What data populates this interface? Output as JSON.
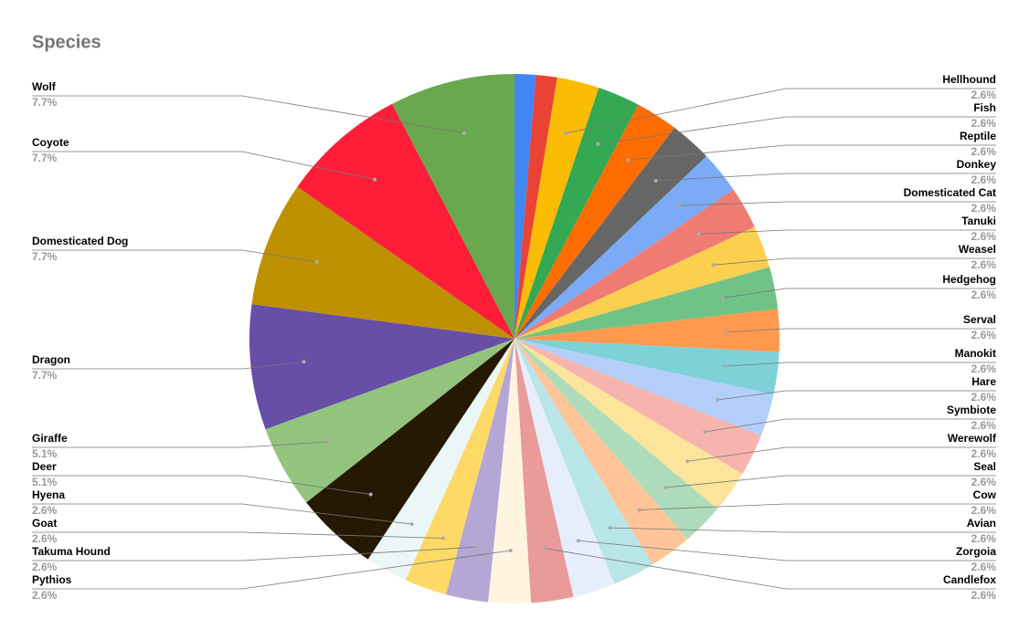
{
  "chart_data": {
    "type": "pie",
    "title": "Species",
    "categories": [
      null,
      null,
      "Hellhound",
      "Fish",
      "Reptile",
      "Donkey",
      "Domesticated Cat",
      "Tanuki",
      "Weasel",
      "Hedgehog",
      "Serval",
      "Manokit",
      "Hare",
      "Symbiote",
      "Werewolf",
      "Seal",
      "Cow",
      "Avian",
      "Zorgoia",
      "Candlefox",
      "Pythios",
      "Takuma Hound",
      "Goat",
      "Hyena",
      "Deer",
      "Giraffe",
      "Dragon",
      "Domesticated Dog",
      "Coyote",
      "Wolf"
    ],
    "values": [
      1.3,
      1.3,
      2.6,
      2.6,
      2.6,
      2.6,
      2.6,
      2.6,
      2.6,
      2.6,
      2.6,
      2.6,
      2.6,
      2.6,
      2.6,
      2.6,
      2.6,
      2.6,
      2.6,
      2.6,
      2.6,
      2.6,
      2.6,
      2.6,
      5.1,
      5.1,
      7.7,
      7.7,
      7.7,
      7.7
    ],
    "value_labels": [
      null,
      null,
      "2.6%",
      "2.6%",
      "2.6%",
      "2.6%",
      "2.6%",
      "2.6%",
      "2.6%",
      "2.6%",
      "2.6%",
      "2.6%",
      "2.6%",
      "2.6%",
      "2.6%",
      "2.6%",
      "2.6%",
      "2.6%",
      "2.6%",
      "2.6%",
      "2.6%",
      "2.6%",
      "2.6%",
      "2.6%",
      "5.1%",
      "5.1%",
      "7.7%",
      "7.7%",
      "7.7%",
      "7.7%"
    ],
    "colors": [
      "#4285f4",
      "#ea4335",
      "#fbbc04",
      "#34a853",
      "#ff6d01",
      "#666666",
      "#7baaf7",
      "#f07b72",
      "#fcd04f",
      "#71c287",
      "#ff994d",
      "#7ed1d7",
      "#b3cefb",
      "#f7b4ae",
      "#fde49b",
      "#aedcba",
      "#ffc599",
      "#b8e5e7",
      "#e6eefd",
      "#e89b99",
      "#fff4e0",
      "#b4a7d6",
      "#ffd966",
      "#ebf7f6",
      "#261904",
      "#93c47d",
      "#674ea7",
      "#bf9000",
      "#ff1d37",
      "#6aa84f"
    ]
  }
}
